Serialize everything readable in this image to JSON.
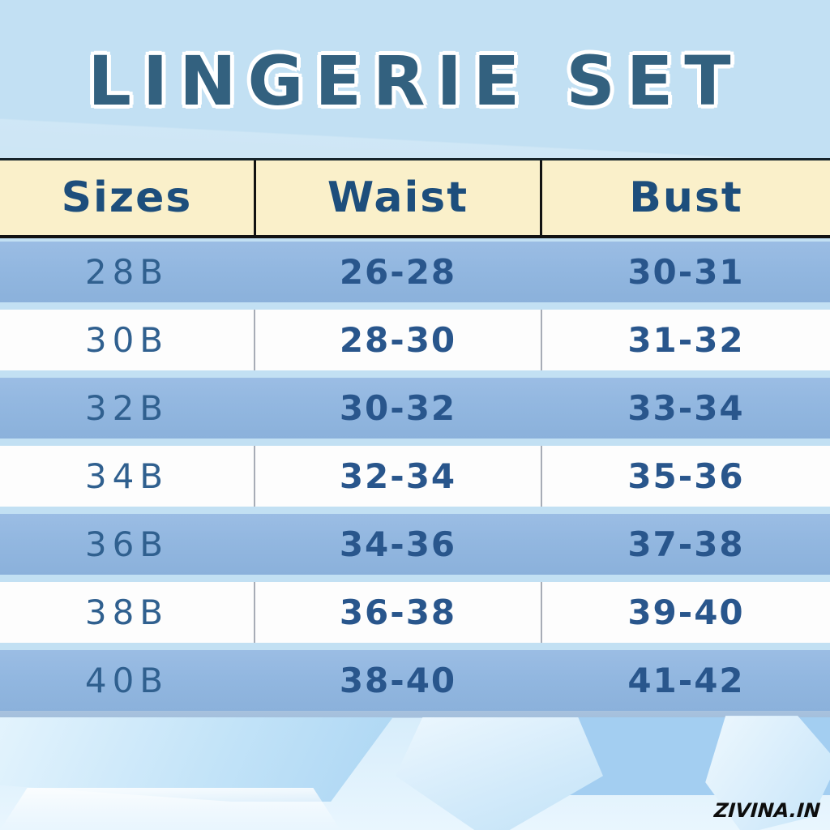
{
  "title": "LINGERIE SET",
  "table": {
    "headers": [
      "Sizes",
      "Waist",
      "Bust"
    ],
    "rows": [
      {
        "size": "28B",
        "waist": "26-28",
        "bust": "30-31"
      },
      {
        "size": "30B",
        "waist": "28-30",
        "bust": "31-32"
      },
      {
        "size": "32B",
        "waist": "30-32",
        "bust": "33-34"
      },
      {
        "size": "34B",
        "waist": "32-34",
        "bust": "35-36"
      },
      {
        "size": "36B",
        "waist": "34-36",
        "bust": "37-38"
      },
      {
        "size": "38B",
        "waist": "36-38",
        "bust": "39-40"
      },
      {
        "size": "40B",
        "waist": "38-40",
        "bust": "41-42"
      }
    ]
  },
  "watermark": "ZIVINA.IN",
  "colors": {
    "title_text": "#33617f",
    "header_bg": "#faf0ca",
    "header_text": "#1d4e7c",
    "row_blue": "#92b7e0",
    "row_white": "#fdfdfd",
    "cell_text": "#29568c",
    "background": "#c2e0f3",
    "border_black": "#121212",
    "footer_strip": "#a8c2de",
    "watermark_text": "#0d0d0d"
  }
}
